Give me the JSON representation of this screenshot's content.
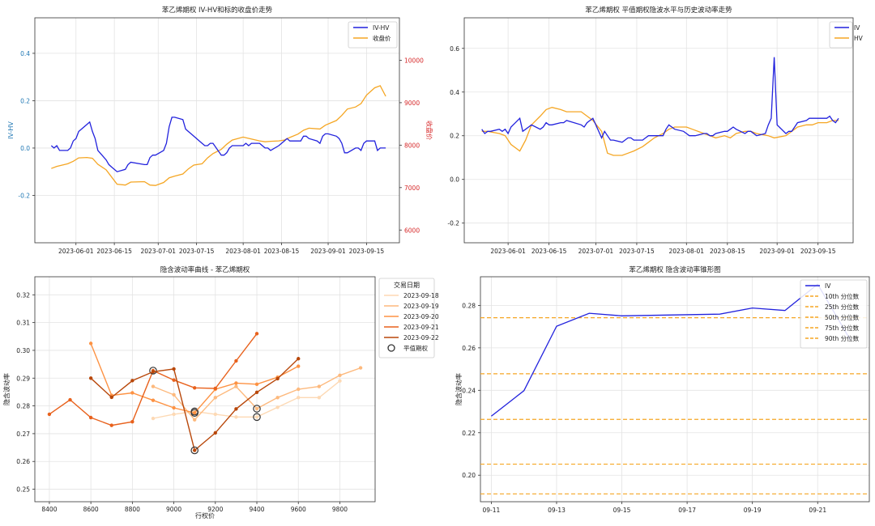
{
  "chart_data": [
    {
      "type": "line",
      "title": "苯乙烯期权 IV-HV和标的收盘价走势",
      "ylabel": "IV-HV",
      "y2label": "收盘价",
      "xlabel": "",
      "x_ticks": [
        "2023-06-01",
        "2023-06-15",
        "2023-07-01",
        "2023-07-15",
        "2023-08-01",
        "2023-08-15",
        "2023-09-01",
        "2023-09-15"
      ],
      "y_ticks": [
        -0.2,
        0.0,
        0.2,
        0.4
      ],
      "y2_ticks": [
        6000,
        7000,
        8000,
        9000,
        10000
      ],
      "ylim": [
        -0.4,
        0.55
      ],
      "y2lim": [
        5700,
        11000
      ],
      "xlim": [
        "2023-05-17",
        "2023-09-27"
      ],
      "grid": true,
      "legend": "top-right",
      "series": [
        {
          "name": "IV-HV",
          "color": "#2222dd",
          "axis": "left",
          "x": [
            "2023-05-23",
            "2023-05-24",
            "2023-05-25",
            "2023-05-26",
            "2023-05-29",
            "2023-05-30",
            "2023-05-31",
            "2023-06-01",
            "2023-06-02",
            "2023-06-05",
            "2023-06-06",
            "2023-06-07",
            "2023-06-08",
            "2023-06-09",
            "2023-06-12",
            "2023-06-13",
            "2023-06-14",
            "2023-06-15",
            "2023-06-16",
            "2023-06-19",
            "2023-06-20",
            "2023-06-21",
            "2023-06-26",
            "2023-06-27",
            "2023-06-28",
            "2023-06-29",
            "2023-06-30",
            "2023-07-03",
            "2023-07-04",
            "2023-07-05",
            "2023-07-06",
            "2023-07-07",
            "2023-07-10",
            "2023-07-11",
            "2023-07-12",
            "2023-07-13",
            "2023-07-14",
            "2023-07-17",
            "2023-07-18",
            "2023-07-19",
            "2023-07-20",
            "2023-07-21",
            "2023-07-24",
            "2023-07-25",
            "2023-07-26",
            "2023-07-27",
            "2023-07-28",
            "2023-07-31",
            "2023-08-01",
            "2023-08-02",
            "2023-08-03",
            "2023-08-04",
            "2023-08-07",
            "2023-08-08",
            "2023-08-09",
            "2023-08-10",
            "2023-08-11",
            "2023-08-14",
            "2023-08-15",
            "2023-08-16",
            "2023-08-17",
            "2023-08-18",
            "2023-08-21",
            "2023-08-22",
            "2023-08-23",
            "2023-08-24",
            "2023-08-25",
            "2023-08-28",
            "2023-08-29",
            "2023-08-30",
            "2023-08-31",
            "2023-09-01",
            "2023-09-04",
            "2023-09-05",
            "2023-09-06",
            "2023-09-07",
            "2023-09-08",
            "2023-09-11",
            "2023-09-12",
            "2023-09-13",
            "2023-09-14",
            "2023-09-15",
            "2023-09-18",
            "2023-09-19",
            "2023-09-20",
            "2023-09-21",
            "2023-09-22"
          ],
          "values": [
            0.01,
            0.0,
            0.01,
            -0.01,
            -0.01,
            0.0,
            0.03,
            0.04,
            0.07,
            0.1,
            0.11,
            0.07,
            0.04,
            -0.01,
            -0.05,
            -0.07,
            -0.08,
            -0.09,
            -0.1,
            -0.09,
            -0.07,
            -0.06,
            -0.07,
            -0.07,
            -0.04,
            -0.03,
            -0.03,
            -0.01,
            0.02,
            0.09,
            0.13,
            0.13,
            0.12,
            0.08,
            0.07,
            0.06,
            0.05,
            0.02,
            0.01,
            0.01,
            0.02,
            0.02,
            -0.03,
            -0.03,
            -0.02,
            0.0,
            0.01,
            0.01,
            0.01,
            0.02,
            0.01,
            0.02,
            0.02,
            0.01,
            0.0,
            0.0,
            -0.01,
            0.01,
            0.02,
            0.03,
            0.04,
            0.03,
            0.03,
            0.03,
            0.05,
            0.05,
            0.04,
            0.03,
            0.02,
            0.05,
            0.06,
            0.06,
            0.05,
            0.04,
            0.02,
            -0.02,
            -0.02,
            0.0,
            0.0,
            -0.01,
            0.02,
            0.03,
            0.03,
            -0.01,
            0.0,
            0.0,
            0.0
          ]
        },
        {
          "name": "收盘价",
          "color": "#f5a623",
          "axis": "right",
          "x": [
            "2023-05-23",
            "2023-05-25",
            "2023-05-29",
            "2023-05-31",
            "2023-06-02",
            "2023-06-05",
            "2023-06-07",
            "2023-06-09",
            "2023-06-12",
            "2023-06-14",
            "2023-06-16",
            "2023-06-19",
            "2023-06-21",
            "2023-06-26",
            "2023-06-28",
            "2023-06-30",
            "2023-07-03",
            "2023-07-05",
            "2023-07-07",
            "2023-07-10",
            "2023-07-12",
            "2023-07-14",
            "2023-07-17",
            "2023-07-19",
            "2023-07-21",
            "2023-07-24",
            "2023-07-26",
            "2023-07-28",
            "2023-08-01",
            "2023-08-03",
            "2023-08-07",
            "2023-08-09",
            "2023-08-11",
            "2023-08-14",
            "2023-08-16",
            "2023-08-18",
            "2023-08-21",
            "2023-08-23",
            "2023-08-25",
            "2023-08-29",
            "2023-08-31",
            "2023-09-04",
            "2023-09-06",
            "2023-09-08",
            "2023-09-11",
            "2023-09-13",
            "2023-09-15",
            "2023-09-18",
            "2023-09-20",
            "2023-09-22"
          ],
          "values": [
            7450,
            7500,
            7560,
            7620,
            7700,
            7710,
            7690,
            7550,
            7420,
            7250,
            7080,
            7060,
            7130,
            7140,
            7060,
            7050,
            7120,
            7230,
            7270,
            7320,
            7440,
            7530,
            7560,
            7700,
            7800,
            7900,
            8020,
            8120,
            8190,
            8160,
            8100,
            8080,
            8090,
            8100,
            8120,
            8180,
            8260,
            8350,
            8400,
            8380,
            8470,
            8580,
            8700,
            8850,
            8900,
            8980,
            9180,
            9350,
            9400,
            9150
          ]
        }
      ]
    },
    {
      "type": "line",
      "title": "苯乙烯期权 平值期权隐波水平与历史波动率走势",
      "xlabel": "",
      "ylabel": "",
      "x_ticks": [
        "2023-06-01",
        "2023-06-15",
        "2023-07-01",
        "2023-07-15",
        "2023-08-01",
        "2023-08-15",
        "2023-09-01",
        "2023-09-15"
      ],
      "y_ticks": [
        -0.2,
        0.0,
        0.2,
        0.4,
        0.6
      ],
      "ylim": [
        -0.29,
        0.74
      ],
      "xlim": [
        "2023-05-17",
        "2023-09-27"
      ],
      "grid": true,
      "legend": "top-right",
      "series": [
        {
          "name": "IV",
          "color": "#2222dd",
          "x": [
            "2023-05-23",
            "2023-05-24",
            "2023-05-25",
            "2023-05-26",
            "2023-05-29",
            "2023-05-30",
            "2023-05-31",
            "2023-06-01",
            "2023-06-02",
            "2023-06-05",
            "2023-06-06",
            "2023-06-07",
            "2023-06-08",
            "2023-06-09",
            "2023-06-12",
            "2023-06-13",
            "2023-06-14",
            "2023-06-15",
            "2023-06-16",
            "2023-06-19",
            "2023-06-20",
            "2023-06-21",
            "2023-06-26",
            "2023-06-27",
            "2023-06-28",
            "2023-06-29",
            "2023-06-30",
            "2023-07-03",
            "2023-07-04",
            "2023-07-05",
            "2023-07-06",
            "2023-07-07",
            "2023-07-10",
            "2023-07-11",
            "2023-07-12",
            "2023-07-13",
            "2023-07-14",
            "2023-07-17",
            "2023-07-18",
            "2023-07-19",
            "2023-07-20",
            "2023-07-21",
            "2023-07-24",
            "2023-07-25",
            "2023-07-26",
            "2023-07-27",
            "2023-07-28",
            "2023-07-31",
            "2023-08-01",
            "2023-08-02",
            "2023-08-03",
            "2023-08-04",
            "2023-08-07",
            "2023-08-08",
            "2023-08-09",
            "2023-08-10",
            "2023-08-11",
            "2023-08-14",
            "2023-08-15",
            "2023-08-16",
            "2023-08-17",
            "2023-08-18",
            "2023-08-21",
            "2023-08-22",
            "2023-08-23",
            "2023-08-24",
            "2023-08-25",
            "2023-08-28",
            "2023-08-29",
            "2023-08-30",
            "2023-08-31",
            "2023-09-01",
            "2023-09-04",
            "2023-09-05",
            "2023-09-06",
            "2023-09-07",
            "2023-09-08",
            "2023-09-11",
            "2023-09-12",
            "2023-09-13",
            "2023-09-14",
            "2023-09-15",
            "2023-09-18",
            "2023-09-19",
            "2023-09-20",
            "2023-09-21",
            "2023-09-22"
          ],
          "values": [
            0.23,
            0.21,
            0.22,
            0.22,
            0.23,
            0.22,
            0.23,
            0.21,
            0.24,
            0.28,
            0.22,
            0.23,
            0.24,
            0.25,
            0.23,
            0.24,
            0.26,
            0.25,
            0.25,
            0.26,
            0.26,
            0.27,
            0.25,
            0.24,
            0.26,
            0.27,
            0.28,
            0.19,
            0.22,
            0.2,
            0.18,
            0.18,
            0.17,
            0.18,
            0.19,
            0.19,
            0.18,
            0.18,
            0.19,
            0.2,
            0.2,
            0.2,
            0.2,
            0.23,
            0.25,
            0.24,
            0.23,
            0.22,
            0.21,
            0.2,
            0.2,
            0.2,
            0.21,
            0.21,
            0.2,
            0.2,
            0.21,
            0.22,
            0.22,
            0.23,
            0.24,
            0.23,
            0.21,
            0.22,
            0.22,
            0.21,
            0.2,
            0.21,
            0.25,
            0.28,
            0.56,
            0.25,
            0.21,
            0.22,
            0.22,
            0.24,
            0.26,
            0.27,
            0.28,
            0.28,
            0.28,
            0.28,
            0.28,
            0.29,
            0.27,
            0.26,
            0.28
          ]
        },
        {
          "name": "HV",
          "color": "#f5a623",
          "x": [
            "2023-05-23",
            "2023-05-25",
            "2023-05-29",
            "2023-05-31",
            "2023-06-02",
            "2023-06-05",
            "2023-06-07",
            "2023-06-09",
            "2023-06-12",
            "2023-06-14",
            "2023-06-16",
            "2023-06-19",
            "2023-06-21",
            "2023-06-26",
            "2023-06-28",
            "2023-06-30",
            "2023-07-03",
            "2023-07-05",
            "2023-07-07",
            "2023-07-10",
            "2023-07-12",
            "2023-07-14",
            "2023-07-17",
            "2023-07-19",
            "2023-07-21",
            "2023-07-24",
            "2023-07-26",
            "2023-07-28",
            "2023-08-01",
            "2023-08-03",
            "2023-08-07",
            "2023-08-09",
            "2023-08-11",
            "2023-08-14",
            "2023-08-16",
            "2023-08-18",
            "2023-08-21",
            "2023-08-23",
            "2023-08-25",
            "2023-08-29",
            "2023-08-31",
            "2023-09-04",
            "2023-09-06",
            "2023-09-08",
            "2023-09-11",
            "2023-09-13",
            "2023-09-15",
            "2023-09-18",
            "2023-09-20",
            "2023-09-22"
          ],
          "values": [
            0.22,
            0.22,
            0.21,
            0.2,
            0.16,
            0.13,
            0.18,
            0.25,
            0.29,
            0.32,
            0.33,
            0.32,
            0.31,
            0.31,
            0.29,
            0.27,
            0.22,
            0.12,
            0.11,
            0.11,
            0.12,
            0.13,
            0.15,
            0.17,
            0.19,
            0.21,
            0.23,
            0.24,
            0.24,
            0.23,
            0.21,
            0.2,
            0.19,
            0.2,
            0.19,
            0.21,
            0.22,
            0.22,
            0.21,
            0.2,
            0.19,
            0.2,
            0.22,
            0.24,
            0.25,
            0.25,
            0.26,
            0.26,
            0.27,
            0.27
          ]
        }
      ]
    },
    {
      "type": "line",
      "title": "隐含波动率曲线 - 苯乙烯期权",
      "xlabel": "行权价",
      "ylabel": "隐含波动率",
      "x_ticks": [
        8400,
        8600,
        8800,
        9000,
        9200,
        9400,
        9600,
        9800
      ],
      "y_ticks": [
        0.25,
        0.26,
        0.27,
        0.28,
        0.29,
        0.3,
        0.31,
        0.32
      ],
      "xlim": [
        8330,
        9970
      ],
      "ylim": [
        0.2455,
        0.3265
      ],
      "grid": true,
      "legend": "outside-right",
      "legend_title": "交易日期",
      "marker_legend": "平值期权",
      "series": [
        {
          "name": "2023-09-18",
          "color": "#fdd9b4",
          "x": [
            8900,
            9000,
            9100,
            9200,
            9300,
            9400,
            9500,
            9600,
            9700,
            9800
          ],
          "values": [
            0.2755,
            0.277,
            0.278,
            0.277,
            0.276,
            0.276,
            0.2795,
            0.283,
            0.283,
            0.289
          ],
          "atm": [
            9100,
            9400
          ]
        },
        {
          "name": "2023-09-19",
          "color": "#fdb97d",
          "x": [
            8900,
            9000,
            9100,
            9200,
            9300,
            9400,
            9500,
            9600,
            9700,
            9800,
            9900
          ],
          "values": [
            0.287,
            0.284,
            0.275,
            0.283,
            0.287,
            0.279,
            0.283,
            0.286,
            0.287,
            0.291,
            0.2937
          ],
          "atm": [
            9400
          ]
        },
        {
          "name": "2023-09-20",
          "color": "#fd9243",
          "x": [
            8600,
            8700,
            8800,
            8900,
            9000,
            9100,
            9200,
            9300,
            9400,
            9500,
            9600
          ],
          "values": [
            0.3025,
            0.2838,
            0.2847,
            0.282,
            0.2793,
            0.2775,
            0.286,
            0.2882,
            0.2878,
            0.2903,
            0.2943
          ],
          "atm": [
            9100
          ]
        },
        {
          "name": "2023-09-21",
          "color": "#e8611c",
          "x": [
            8400,
            8500,
            8600,
            8700,
            8800,
            8900,
            9000,
            9100,
            9200,
            9300,
            9400
          ],
          "values": [
            0.277,
            0.2822,
            0.2758,
            0.273,
            0.2743,
            0.2927,
            0.2893,
            0.2865,
            0.2863,
            0.2962,
            0.306
          ],
          "atm": [
            8900
          ]
        },
        {
          "name": "2023-09-22",
          "color": "#b8470a",
          "x": [
            8600,
            8700,
            8800,
            8900,
            9000,
            9100,
            9200,
            9300,
            9400,
            9500,
            9600
          ],
          "values": [
            0.29,
            0.2831,
            0.2891,
            0.2923,
            0.2933,
            0.264,
            0.2703,
            0.2789,
            0.2849,
            0.2898,
            0.297
          ],
          "atm": [
            9100
          ]
        }
      ]
    },
    {
      "type": "line",
      "title": "苯乙烯期权 隐含波动率锥形图",
      "xlabel": "",
      "ylabel": "隐含波动率",
      "x_ticks": [
        "09-11",
        "09-13",
        "09-15",
        "09-17",
        "09-19",
        "09-21"
      ],
      "y_ticks": [
        0.2,
        0.22,
        0.24,
        0.26,
        0.28
      ],
      "xlim": [
        "2023-09-10T16:00",
        "2023-09-22T14:00"
      ],
      "ylim": [
        0.1875,
        0.2935
      ],
      "grid": true,
      "legend": "top-right",
      "series": [
        {
          "name": "IV",
          "color": "#2222dd",
          "x": [
            "2023-09-11",
            "2023-09-12",
            "2023-09-13",
            "2023-09-14",
            "2023-09-15",
            "2023-09-18",
            "2023-09-19",
            "2023-09-20",
            "2023-09-21",
            "2023-09-22"
          ],
          "values": [
            0.2278,
            0.2398,
            0.2702,
            0.2763,
            0.2751,
            0.2759,
            0.2788,
            0.2776,
            0.29,
            0.2638
          ]
        }
      ],
      "percentiles": [
        {
          "name": "10th 分位数",
          "value": 0.1912,
          "color": "#f5a623"
        },
        {
          "name": "25th 分位数",
          "value": 0.2052,
          "color": "#f5a623"
        },
        {
          "name": "50th 分位数",
          "value": 0.2263,
          "color": "#f5a623"
        },
        {
          "name": "75th 分位数",
          "value": 0.2478,
          "color": "#f5a623"
        },
        {
          "name": "90th 分位数",
          "value": 0.2742,
          "color": "#f5a623"
        }
      ]
    }
  ]
}
